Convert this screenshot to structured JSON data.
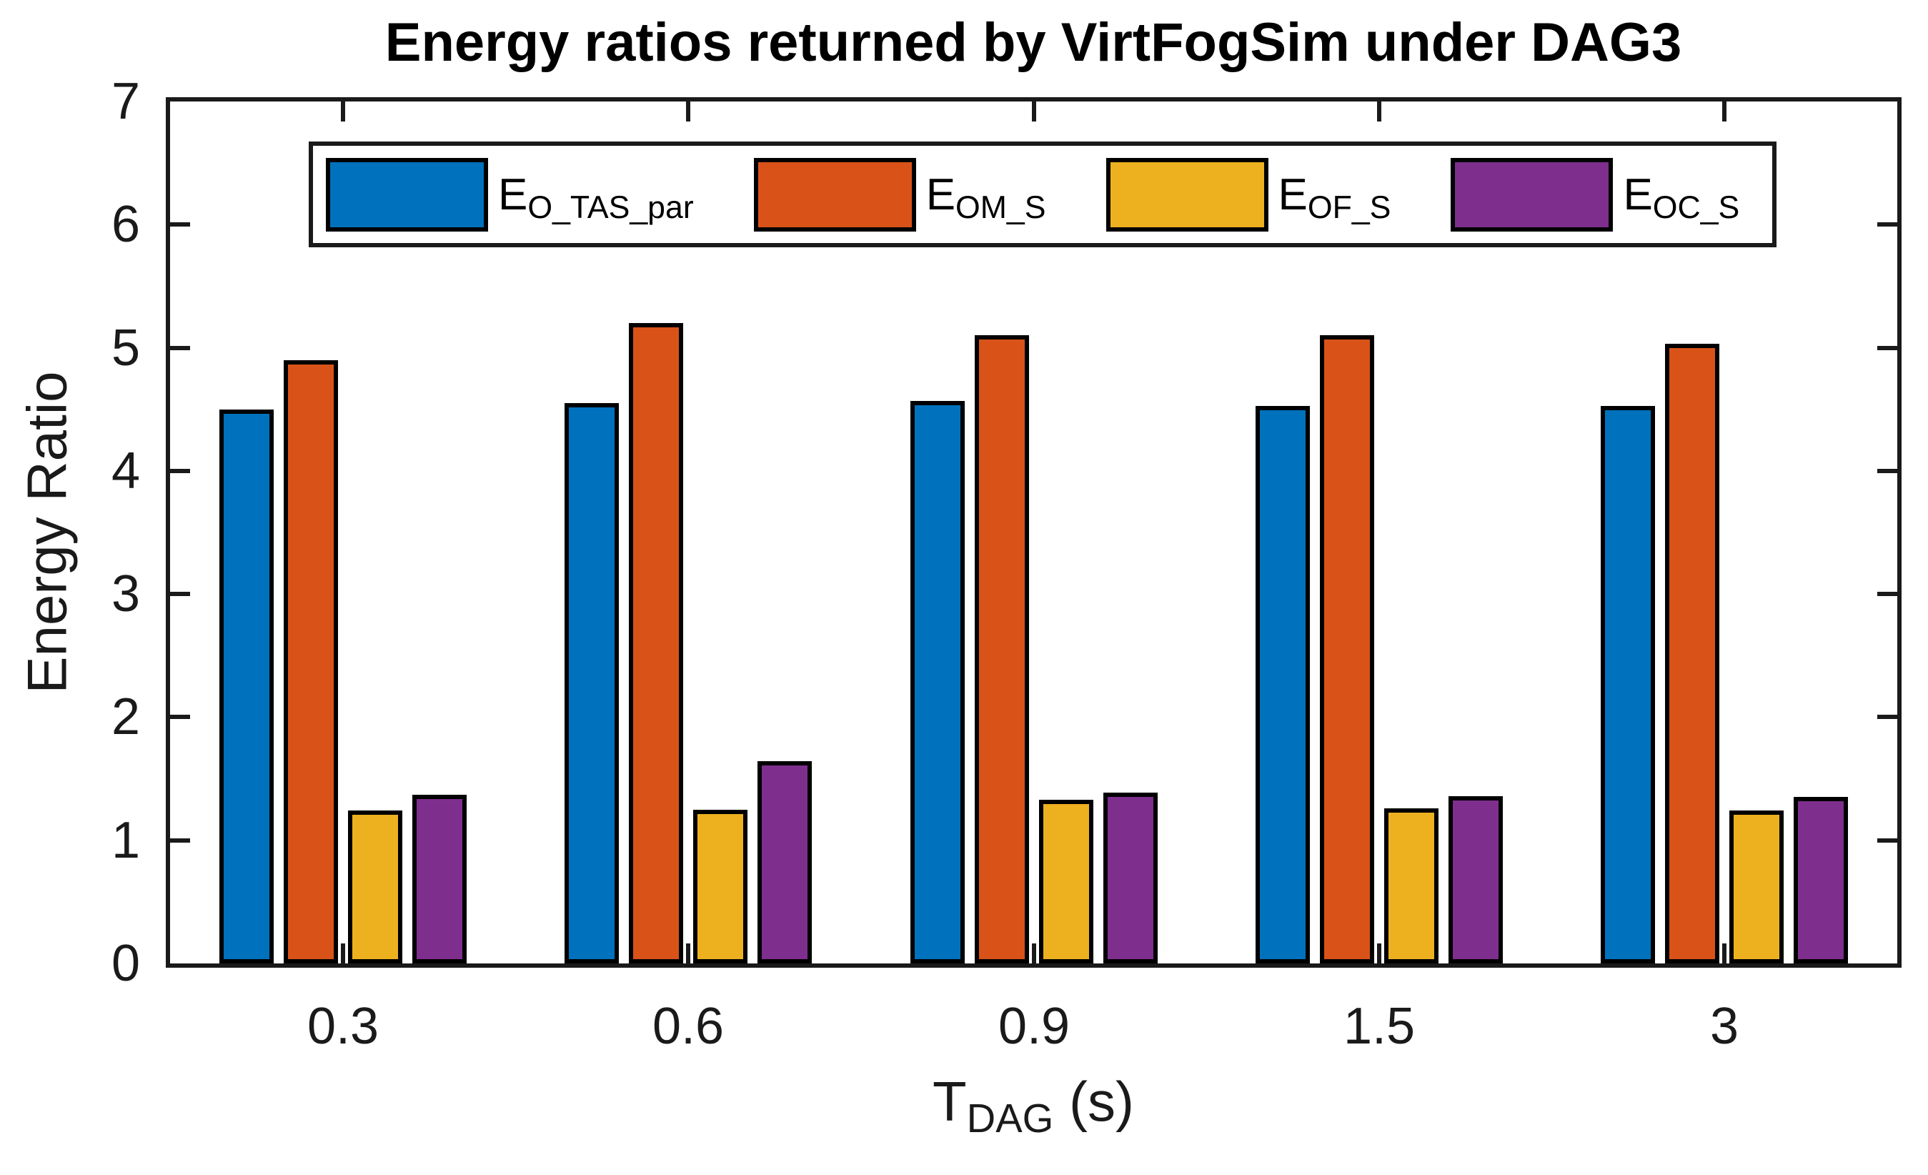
{
  "title": "Energy ratios returned by VirtFogSim under DAG3",
  "y_axis": {
    "label": "Energy Ratio",
    "ticks": [
      "0",
      "1",
      "2",
      "3",
      "4",
      "5",
      "6",
      "7"
    ]
  },
  "x_axis": {
    "label_base": "T",
    "label_sub": "DAG",
    "label_unit": " (s)",
    "ticks": [
      "0.3",
      "0.6",
      "0.9",
      "1.5",
      "3"
    ]
  },
  "legend": {
    "entries": [
      {
        "base": "E",
        "sub": "O_TAS_par",
        "color": "#0072BD"
      },
      {
        "base": "E",
        "sub": "OM_S",
        "color": "#D95319"
      },
      {
        "base": "E",
        "sub": "OF_S",
        "color": "#EDB120"
      },
      {
        "base": "E",
        "sub": "OC_S",
        "color": "#7E2F8E"
      }
    ]
  },
  "colors": {
    "axis": "#1a1a1a",
    "bar_edge": "#000000",
    "background": "#ffffff",
    "series_blue": "#0072BD",
    "series_orange": "#D95319",
    "series_yellow": "#EDB120",
    "series_purple": "#7E2F8E"
  },
  "chart_data": {
    "type": "bar",
    "title": "Energy ratios returned by VirtFogSim under DAG3",
    "xlabel": "T_DAG (s)",
    "ylabel": "Energy Ratio",
    "categories": [
      "0.3",
      "0.6",
      "0.9",
      "1.5",
      "3"
    ],
    "series": [
      {
        "name": "E_O_TAS_par",
        "color": "#0072BD",
        "values": [
          4.5,
          4.55,
          4.57,
          4.53,
          4.53
        ]
      },
      {
        "name": "E_OM_S",
        "color": "#D95319",
        "values": [
          4.9,
          5.2,
          5.1,
          5.1,
          5.03
        ]
      },
      {
        "name": "E_OF_S",
        "color": "#EDB120",
        "values": [
          1.24,
          1.25,
          1.33,
          1.26,
          1.24
        ]
      },
      {
        "name": "E_OC_S",
        "color": "#7E2F8E",
        "values": [
          1.37,
          1.64,
          1.39,
          1.36,
          1.35
        ]
      }
    ],
    "ylim": [
      0,
      7
    ],
    "grid": false,
    "legend_position": "top-inside-horizontal"
  }
}
